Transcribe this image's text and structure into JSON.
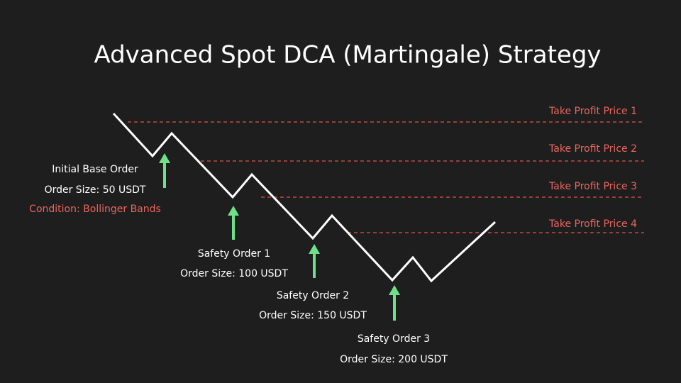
{
  "title": "Advanced Spot DCA (Martingale) Strategy",
  "take_profit": [
    "Take Profit Price 1",
    "Take Profit Price 2",
    "Take Profit Price 3",
    "Take Profit Price 4"
  ],
  "orders": [
    {
      "title": "Initial Base Order",
      "size": "Order Size: 50 USDT",
      "condition": "Condition: Bollinger Bands"
    },
    {
      "title": "Safety Order 1",
      "size": "Order Size: 100 USDT"
    },
    {
      "title": "Safety Order 2",
      "size": "Order Size: 150 USDT"
    },
    {
      "title": "Safety Order 3",
      "size": "Order Size: 200 USDT"
    }
  ]
}
